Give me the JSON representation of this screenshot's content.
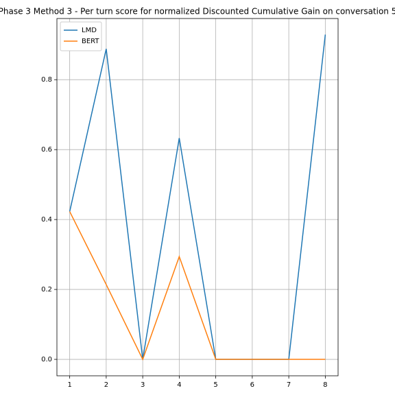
{
  "chart_data": {
    "type": "line",
    "title": "Phase 3 Method 3 - Per turn score for normalized Discounted Cumulative Gain on conversation 5",
    "x": [
      1,
      2,
      3,
      4,
      5,
      6,
      7,
      8
    ],
    "series": [
      {
        "name": "LMD",
        "color": "#1f77b4",
        "values": [
          0.423,
          0.888,
          0,
          0.633,
          0,
          0,
          0,
          0.929
        ]
      },
      {
        "name": "BERT",
        "color": "#ff7f0e",
        "values": [
          0.423,
          0.214,
          0,
          0.294,
          0,
          0,
          0,
          0
        ]
      }
    ],
    "xlim": [
      0.65,
      8.35
    ],
    "xticks": [
      1,
      2,
      3,
      4,
      5,
      6,
      7,
      8
    ],
    "ylim": [
      -0.047,
      0.975
    ],
    "yticks": [
      {
        "value": 0,
        "label": "0.0"
      },
      {
        "value": 0.2,
        "label": "0.2"
      },
      {
        "value": 0.4,
        "label": "0.4"
      },
      {
        "value": 0.6,
        "label": "0.6"
      },
      {
        "value": 0.8,
        "label": "0.8"
      }
    ],
    "grid": true,
    "legend": "upper-left"
  }
}
